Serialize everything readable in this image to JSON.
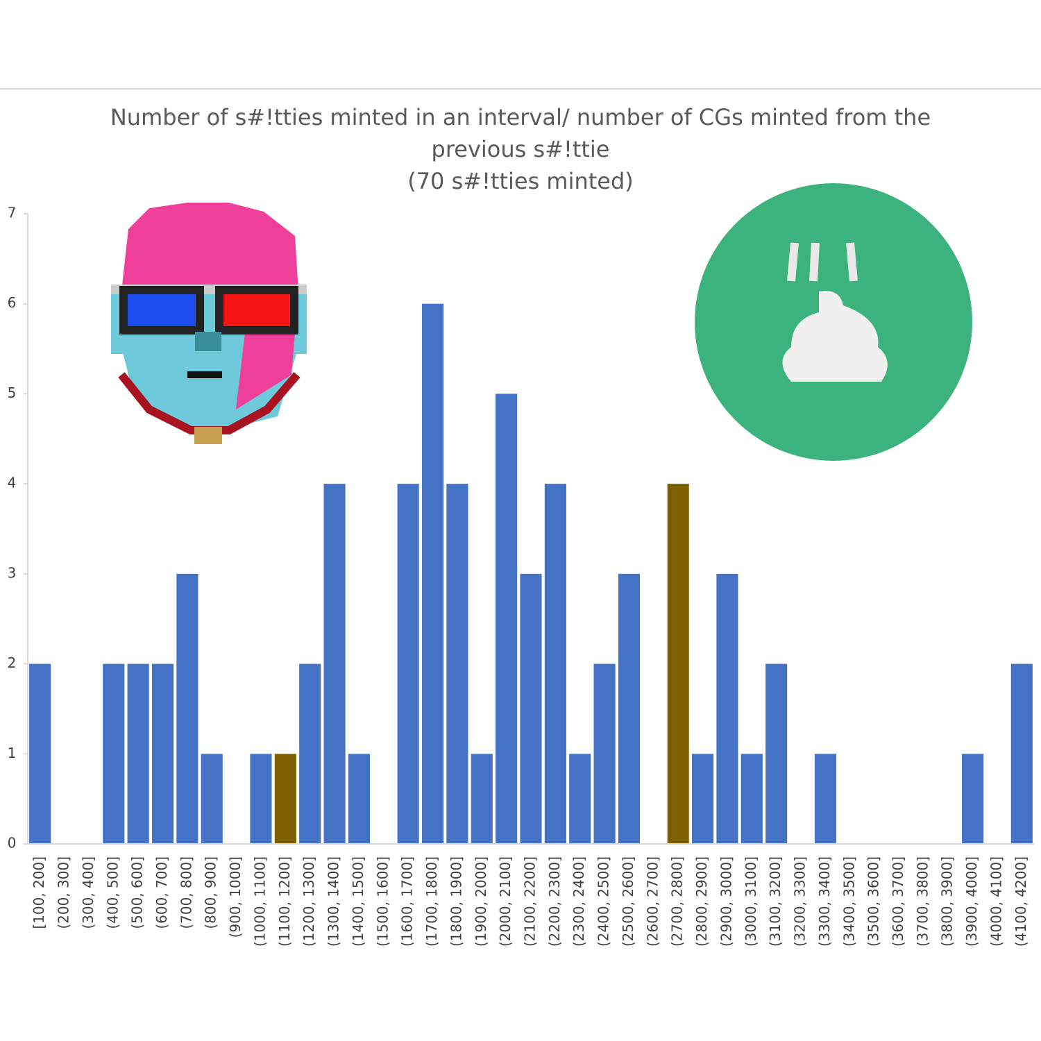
{
  "chart_data": {
    "type": "bar",
    "title": "Number of s#!tties minted in an interval/ number of CGs minted from the previous s#!ttie",
    "subtitle": "(70 s#!tties minted)",
    "categories": [
      "[100, 200]",
      "(200, 300]",
      "(300, 400]",
      "(400, 500]",
      "(500, 600]",
      "(600, 700]",
      "(700, 800]",
      "(800, 900]",
      "(900, 1000]",
      "(1000, 1100]",
      "(1100, 1200]",
      "(1200, 1300]",
      "(1300, 1400]",
      "(1400, 1500]",
      "(1500, 1600]",
      "(1600, 1700]",
      "(1700, 1800]",
      "(1800, 1900]",
      "(1900, 2000]",
      "(2000, 2100]",
      "(2100, 2200]",
      "(2200, 2300]",
      "(2300, 2400]",
      "(2400, 2500]",
      "(2500, 2600]",
      "(2600, 2700]",
      "(2700, 2800]",
      "(2800, 2900]",
      "(2900, 3000]",
      "(3000, 3100]",
      "(3100, 3200]",
      "(3200, 3300]",
      "(3300, 3400]",
      "(3400, 3500]",
      "(3500, 3600]",
      "(3600, 3700]",
      "(3700, 3800]",
      "(3800, 3900]",
      "(3900, 4000]",
      "(4000, 4100]",
      "(4100, 4200]"
    ],
    "values": [
      2,
      0,
      0,
      2,
      2,
      2,
      3,
      1,
      0,
      1,
      1,
      2,
      4,
      1,
      0,
      4,
      6,
      4,
      1,
      5,
      3,
      4,
      1,
      2,
      3,
      0,
      4,
      1,
      3,
      1,
      2,
      0,
      1,
      0,
      0,
      0,
      0,
      0,
      1,
      0,
      2
    ],
    "colors": [
      "#4472c4",
      "#4472c4",
      "#4472c4",
      "#4472c4",
      "#4472c4",
      "#4472c4",
      "#4472c4",
      "#4472c4",
      "#4472c4",
      "#4472c4",
      "#7f6000",
      "#4472c4",
      "#4472c4",
      "#4472c4",
      "#4472c4",
      "#4472c4",
      "#4472c4",
      "#4472c4",
      "#4472c4",
      "#4472c4",
      "#4472c4",
      "#4472c4",
      "#4472c4",
      "#4472c4",
      "#4472c4",
      "#4472c4",
      "#7f6000",
      "#4472c4",
      "#4472c4",
      "#4472c4",
      "#4472c4",
      "#4472c4",
      "#4472c4",
      "#4472c4",
      "#4472c4",
      "#4472c4",
      "#4472c4",
      "#4472c4",
      "#4472c4",
      "#4472c4",
      "#4472c4"
    ],
    "ylim": [
      0,
      7
    ],
    "yticks": [
      0,
      1,
      2,
      3,
      4,
      5,
      6,
      7
    ],
    "grid": false
  }
}
